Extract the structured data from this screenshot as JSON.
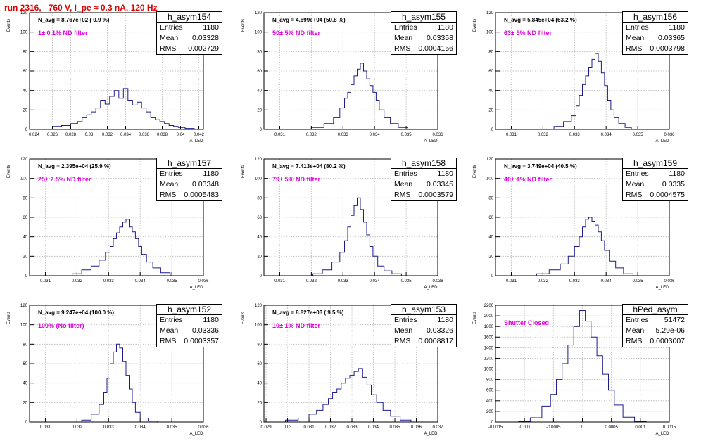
{
  "title": "run 2316,   760 V, I_pe ≈ 0.3 nA, 120 Hz",
  "colors": {
    "title": "#e00000",
    "histogram": "#1c1c8c",
    "annotation": "#e000e0",
    "grid": "#b8b8b8"
  },
  "chart_data": [
    {
      "type": "histogram",
      "name": "h_asym154",
      "ylabel": "Events",
      "xlabel": "A_LED",
      "n_avg": "N_avg = 8.767e+02 ( 0.9 %)",
      "filter": "1± 0.1% ND filter",
      "stats": {
        "Entries": "1180",
        "Mean": "0.03328",
        "RMS": "0.002729"
      },
      "xlim": [
        0.0235,
        0.0425
      ],
      "ylim": [
        0,
        120
      ],
      "xticks": [
        "0.024",
        "0.026",
        "0.028",
        "0.03",
        "0.032",
        "0.034",
        "0.036",
        "0.038",
        "0.04",
        "0.042"
      ],
      "yticks": [
        "0",
        "20",
        "40",
        "60",
        "80",
        "100",
        "120"
      ],
      "x": [
        0.0265,
        0.0275,
        0.0285,
        0.029,
        0.0295,
        0.03,
        0.0305,
        0.031,
        0.0315,
        0.032,
        0.0325,
        0.033,
        0.0335,
        0.034,
        0.0345,
        0.035,
        0.0355,
        0.036,
        0.0365,
        0.037,
        0.0375,
        0.038,
        0.0385,
        0.039,
        0.0395,
        0.04,
        0.041
      ],
      "values": [
        3,
        4,
        6,
        8,
        12,
        15,
        18,
        22,
        30,
        26,
        34,
        40,
        32,
        42,
        30,
        25,
        28,
        22,
        18,
        12,
        10,
        8,
        6,
        4,
        3,
        2,
        1
      ]
    },
    {
      "type": "histogram",
      "name": "h_asym155",
      "ylabel": "Events",
      "xlabel": "A_LED",
      "n_avg": "N_avg = 4.699e+04 (50.8 %)",
      "filter": "50± 5% ND filter",
      "stats": {
        "Entries": "1180",
        "Mean": "0.03358",
        "RMS": "0.0004156"
      },
      "xlim": [
        0.0305,
        0.036
      ],
      "ylim": [
        0,
        120
      ],
      "xticks": [
        "0.031",
        "0.032",
        "0.033",
        "0.034",
        "0.035",
        "0.036"
      ],
      "yticks": [
        "0",
        "20",
        "40",
        "60",
        "80",
        "100",
        "120"
      ],
      "x": [
        0.0322,
        0.0326,
        0.0328,
        0.033,
        0.0331,
        0.0332,
        0.0333,
        0.0334,
        0.0335,
        0.0336,
        0.0337,
        0.0338,
        0.0339,
        0.034,
        0.0341,
        0.0342,
        0.0344,
        0.0346,
        0.0349
      ],
      "values": [
        2,
        6,
        12,
        22,
        32,
        38,
        46,
        55,
        62,
        68,
        60,
        52,
        45,
        38,
        30,
        20,
        12,
        6,
        2
      ]
    },
    {
      "type": "histogram",
      "name": "h_asym156",
      "ylabel": "Events",
      "xlabel": "A_LED",
      "n_avg": "N_avg = 5.845e+04 (63.2 %)",
      "filter": "63± 5% ND filter",
      "stats": {
        "Entries": "1180",
        "Mean": "0.03365",
        "RMS": "0.0003798"
      },
      "xlim": [
        0.0305,
        0.036
      ],
      "ylim": [
        0,
        120
      ],
      "xticks": [
        "0.031",
        "0.032",
        "0.033",
        "0.034",
        "0.035",
        "0.036"
      ],
      "yticks": [
        "0",
        "20",
        "40",
        "60",
        "80",
        "100",
        "120"
      ],
      "x": [
        0.0325,
        0.0328,
        0.033,
        0.0331,
        0.0332,
        0.0333,
        0.0334,
        0.0335,
        0.0336,
        0.0337,
        0.0338,
        0.0339,
        0.034,
        0.0341,
        0.0342,
        0.0343,
        0.0345,
        0.0347
      ],
      "values": [
        3,
        8,
        14,
        24,
        35,
        46,
        55,
        64,
        72,
        78,
        70,
        58,
        45,
        30,
        20,
        12,
        6,
        2
      ]
    },
    {
      "type": "histogram",
      "name": "h_asym157",
      "ylabel": "Events",
      "xlabel": "A_LED",
      "n_avg": "N_avg = 2.395e+04 (25.9 %)",
      "filter": "25± 2.5% ND filter",
      "stats": {
        "Entries": "1180",
        "Mean": "0.03348",
        "RMS": "0.0005483"
      },
      "xlim": [
        0.0305,
        0.036
      ],
      "ylim": [
        0,
        120
      ],
      "xticks": [
        "0.031",
        "0.032",
        "0.033",
        "0.034",
        "0.035",
        "0.036"
      ],
      "yticks": [
        "0",
        "20",
        "40",
        "60",
        "80",
        "100",
        "120"
      ],
      "x": [
        0.032,
        0.0323,
        0.0326,
        0.0328,
        0.033,
        0.0331,
        0.0332,
        0.0333,
        0.0334,
        0.0335,
        0.0336,
        0.0337,
        0.0338,
        0.0339,
        0.034,
        0.0341,
        0.0343,
        0.0345,
        0.0348
      ],
      "values": [
        2,
        6,
        10,
        16,
        24,
        30,
        38,
        44,
        50,
        55,
        58,
        50,
        45,
        38,
        30,
        22,
        14,
        8,
        3
      ]
    },
    {
      "type": "histogram",
      "name": "h_asym158",
      "ylabel": "Events",
      "xlabel": "A_LED",
      "n_avg": "N_avg = 7.413e+04 (80.2 %)",
      "filter": "79± 5% ND filter",
      "stats": {
        "Entries": "1180",
        "Mean": "0.03345",
        "RMS": "0.0003579"
      },
      "xlim": [
        0.0305,
        0.036
      ],
      "ylim": [
        0,
        120
      ],
      "xticks": [
        "0.031",
        "0.032",
        "0.033",
        "0.034",
        "0.035",
        "0.036"
      ],
      "yticks": [
        "0",
        "20",
        "40",
        "60",
        "80",
        "100",
        "120"
      ],
      "x": [
        0.0322,
        0.0325,
        0.0328,
        0.033,
        0.0331,
        0.0332,
        0.0333,
        0.0334,
        0.0335,
        0.0336,
        0.0337,
        0.0338,
        0.0339,
        0.034,
        0.0342,
        0.0344,
        0.0347
      ],
      "values": [
        2,
        6,
        14,
        24,
        36,
        50,
        62,
        72,
        80,
        68,
        55,
        42,
        30,
        20,
        10,
        5,
        2
      ]
    },
    {
      "type": "histogram",
      "name": "h_asym159",
      "ylabel": "Events",
      "xlabel": "A_LED",
      "n_avg": "N_avg = 3.749e+04 (40.5 %)",
      "filter": "40± 4% ND filter",
      "stats": {
        "Entries": "1180",
        "Mean": "0.0335",
        "RMS": "0.0004575"
      },
      "xlim": [
        0.0305,
        0.036
      ],
      "ylim": [
        0,
        120
      ],
      "xticks": [
        "0.031",
        "0.032",
        "0.033",
        "0.034",
        "0.035",
        "0.036"
      ],
      "yticks": [
        "0",
        "20",
        "40",
        "60",
        "80",
        "100",
        "120"
      ],
      "x": [
        0.032,
        0.0324,
        0.0327,
        0.0329,
        0.0331,
        0.0332,
        0.0333,
        0.0334,
        0.0335,
        0.0336,
        0.0337,
        0.0338,
        0.0339,
        0.034,
        0.0342,
        0.0344,
        0.0347
      ],
      "values": [
        2,
        6,
        12,
        20,
        30,
        40,
        50,
        58,
        60,
        56,
        52,
        45,
        36,
        26,
        15,
        8,
        2
      ]
    },
    {
      "type": "histogram",
      "name": "h_asym152",
      "ylabel": "Events",
      "xlabel": "A_LED",
      "n_avg": "N_avg = 9.247e+04 (100.0 %)",
      "filter": "100% (No filter)",
      "stats": {
        "Entries": "1180",
        "Mean": "0.03336",
        "RMS": "0.0003357"
      },
      "xlim": [
        0.0305,
        0.036
      ],
      "ylim": [
        0,
        120
      ],
      "xticks": [
        "0.031",
        "0.032",
        "0.033",
        "0.034",
        "0.035",
        "0.036"
      ],
      "yticks": [
        "0",
        "20",
        "40",
        "60",
        "80",
        "100",
        "120"
      ],
      "x": [
        0.0323,
        0.0326,
        0.0328,
        0.0329,
        0.033,
        0.0331,
        0.0332,
        0.0333,
        0.0334,
        0.0335,
        0.0336,
        0.0337,
        0.0338,
        0.0339,
        0.0341,
        0.0344
      ],
      "values": [
        2,
        8,
        18,
        30,
        45,
        60,
        72,
        80,
        76,
        62,
        48,
        34,
        20,
        10,
        4,
        1
      ]
    },
    {
      "type": "histogram",
      "name": "h_asym153",
      "ylabel": "Events",
      "xlabel": "A_LED",
      "n_avg": "N_avg = 8.827e+03 ( 9.5 %)",
      "filter": "10± 1% ND filter",
      "stats": {
        "Entries": "1180",
        "Mean": "0.03326",
        "RMS": "0.0008817"
      },
      "xlim": [
        0.0289,
        0.037
      ],
      "ylim": [
        0,
        120
      ],
      "xticks": [
        "0.029",
        "0.03",
        "0.031",
        "0.032",
        "0.033",
        "0.034",
        "0.035",
        "0.036",
        "0.037"
      ],
      "yticks": [
        "0",
        "20",
        "40",
        "60",
        "80",
        "100",
        "120"
      ],
      "x": [
        0.0302,
        0.0308,
        0.0312,
        0.0315,
        0.0318,
        0.032,
        0.0322,
        0.0324,
        0.0326,
        0.0328,
        0.033,
        0.0332,
        0.0334,
        0.0336,
        0.0338,
        0.034,
        0.0343,
        0.0346,
        0.035,
        0.0355
      ],
      "values": [
        2,
        4,
        8,
        12,
        18,
        24,
        30,
        34,
        40,
        45,
        48,
        52,
        55,
        46,
        38,
        28,
        20,
        12,
        6,
        2
      ]
    },
    {
      "type": "histogram",
      "name": "hPed_asym",
      "ylabel": "Events",
      "xlabel": "A_LED",
      "n_avg": "",
      "filter": "Shutter Closed",
      "stats": {
        "Entries": "51472",
        "Mean": "5.29e-06",
        "RMS": "0.0003007"
      },
      "xlim": [
        -0.0015,
        0.0015
      ],
      "ylim": [
        0,
        2200
      ],
      "xticks": [
        "-0.0015",
        "-0.001",
        "-0.0005",
        "0",
        "0.0005",
        "0.001",
        "0.0015"
      ],
      "yticks": [
        "0",
        "200",
        "400",
        "600",
        "800",
        "1000",
        "1200",
        "1400",
        "1600",
        "1800",
        "2000",
        "2200"
      ],
      "x": [
        -0.001,
        -0.0008,
        -0.0006,
        -0.0005,
        -0.0004,
        -0.0003,
        -0.0002,
        -0.0001,
        0.0,
        0.0001,
        0.0002,
        0.0003,
        0.0004,
        0.0005,
        0.0006,
        0.0008,
        0.001
      ],
      "values": [
        10,
        80,
        300,
        520,
        800,
        1100,
        1450,
        1800,
        2100,
        1900,
        1600,
        1250,
        900,
        600,
        320,
        90,
        10
      ]
    }
  ]
}
